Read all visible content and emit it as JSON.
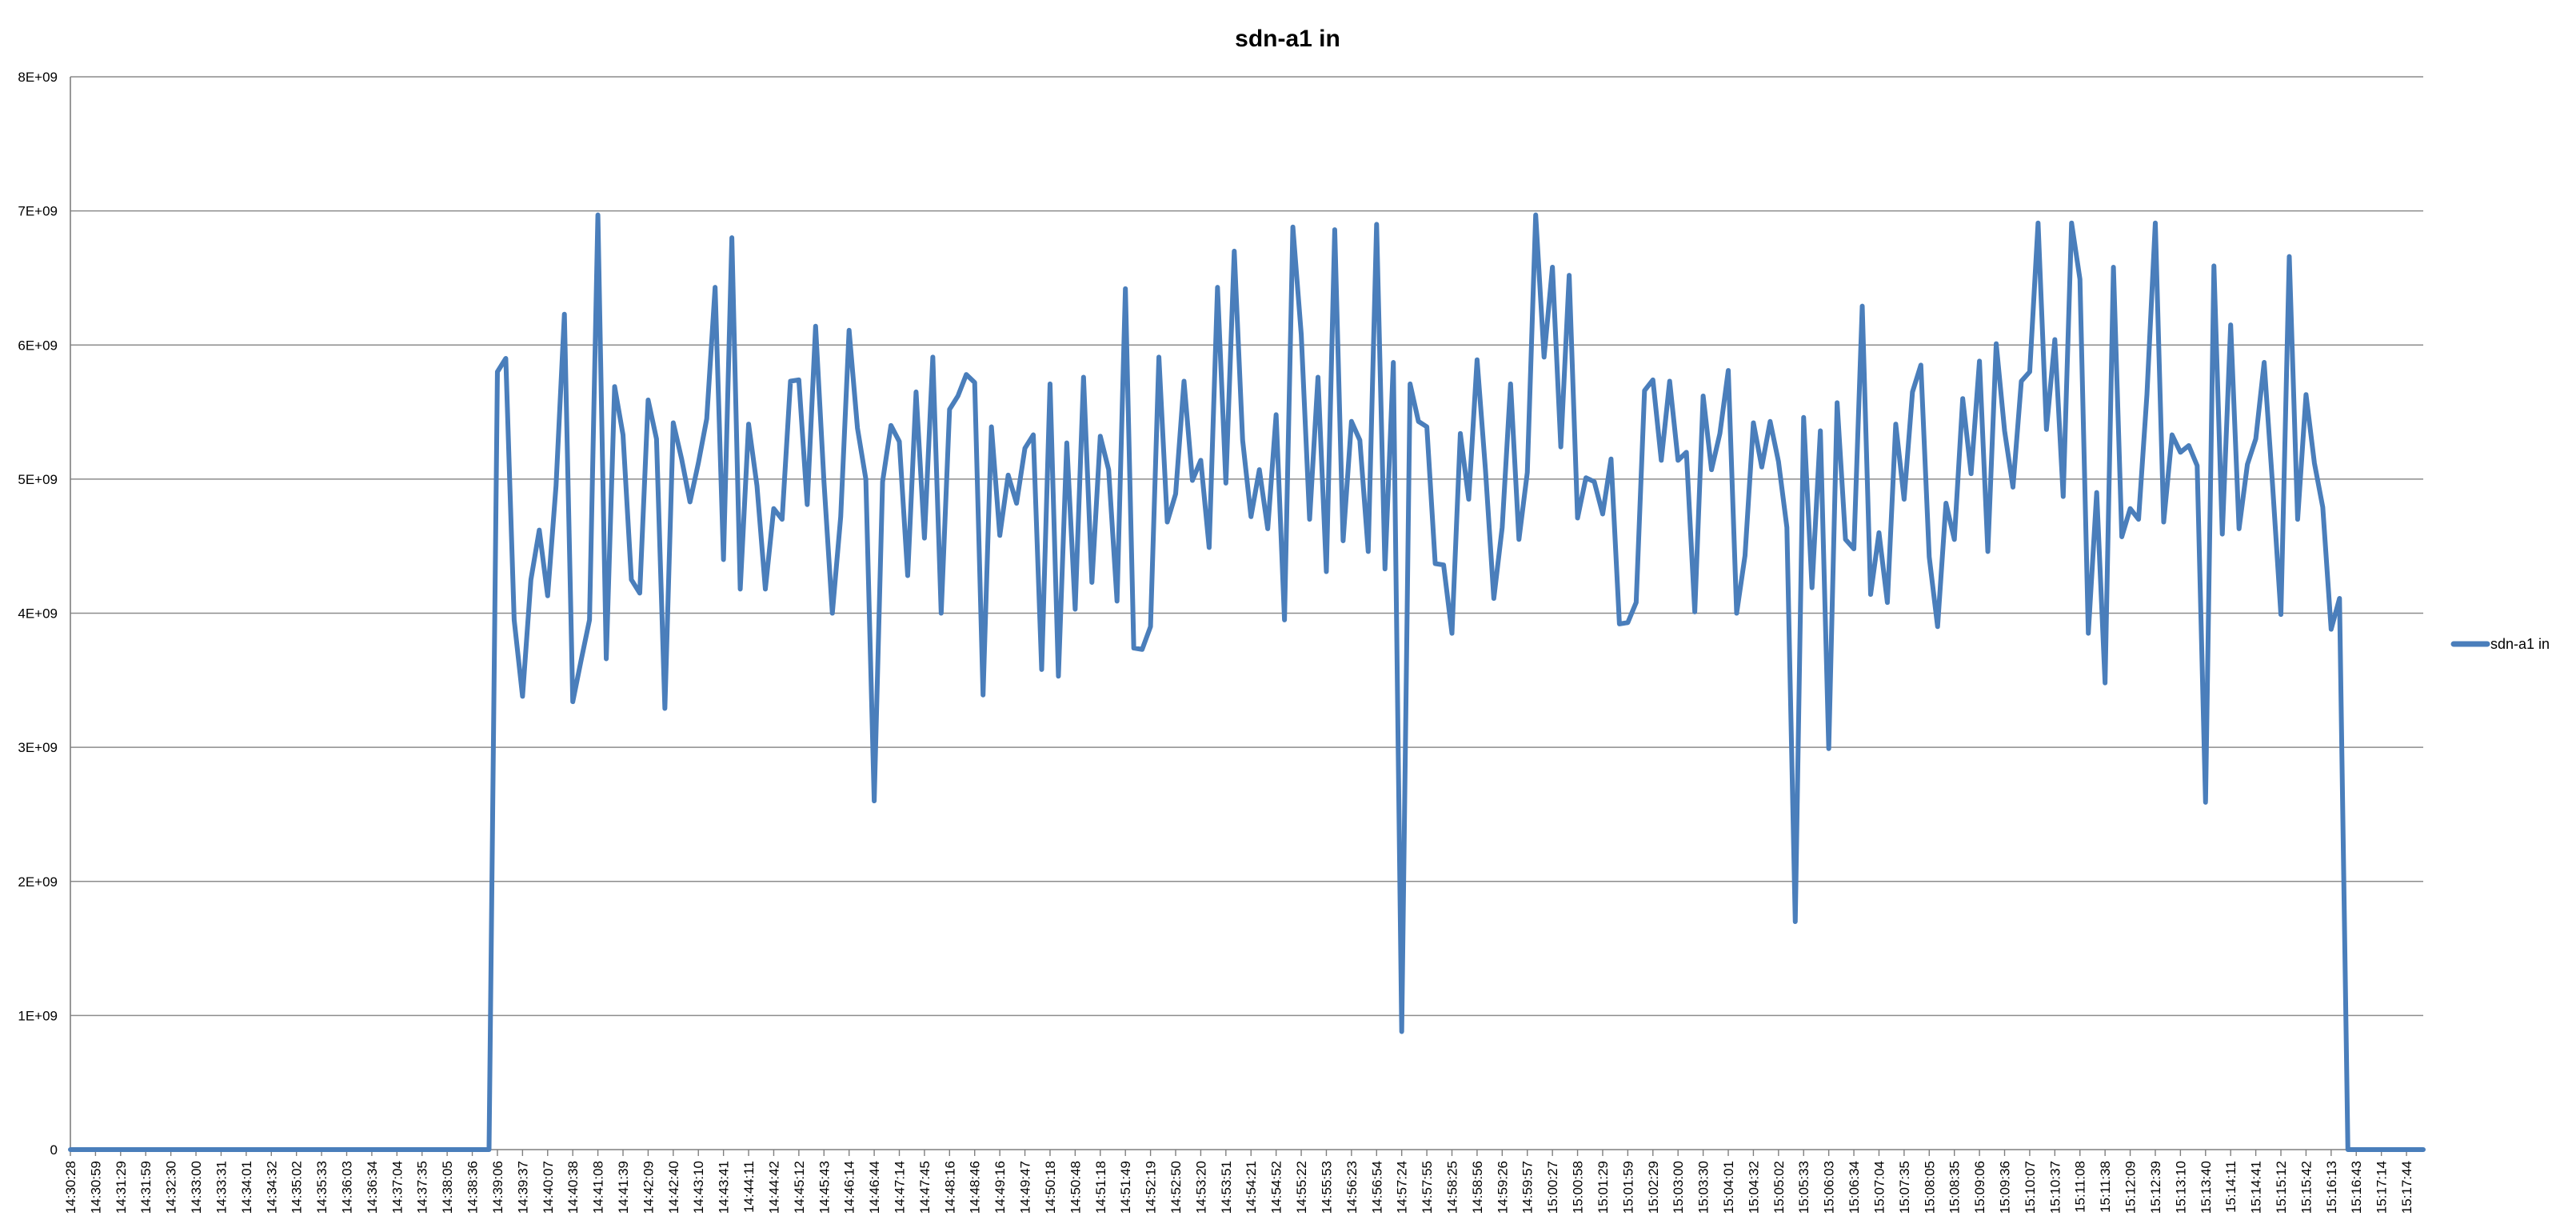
{
  "chart_data": {
    "type": "line",
    "title": "sdn-a1 in",
    "xlabel": "",
    "ylabel": "",
    "ylim": [
      0,
      8000000000
    ],
    "y_ticks": [
      "0",
      "1E+09",
      "2E+09",
      "3E+09",
      "4E+09",
      "5E+09",
      "6E+09",
      "7E+09",
      "8E+09"
    ],
    "x_tick_labels": [
      "14:30:28",
      "14:30:59",
      "14:31:29",
      "14:31:59",
      "14:32:30",
      "14:33:00",
      "14:33:31",
      "14:34:01",
      "14:34:32",
      "14:35:02",
      "14:35:33",
      "14:36:03",
      "14:36:34",
      "14:37:04",
      "14:37:35",
      "14:38:05",
      "14:38:36",
      "14:39:06",
      "14:39:37",
      "14:40:07",
      "14:40:38",
      "14:41:08",
      "14:41:39",
      "14:42:09",
      "14:42:40",
      "14:43:10",
      "14:43:41",
      "14:44:11",
      "14:44:42",
      "14:45:12",
      "14:45:43",
      "14:46:14",
      "14:46:44",
      "14:47:14",
      "14:47:45",
      "14:48:16",
      "14:48:46",
      "14:49:16",
      "14:49:47",
      "14:50:18",
      "14:50:48",
      "14:51:18",
      "14:51:49",
      "14:52:19",
      "14:52:50",
      "14:53:20",
      "14:53:51",
      "14:54:21",
      "14:54:52",
      "14:55:22",
      "14:55:53",
      "14:56:23",
      "14:56:54",
      "14:57:24",
      "14:57:55",
      "14:58:25",
      "14:58:56",
      "14:59:26",
      "14:59:57",
      "15:00:27",
      "15:00:58",
      "15:01:29",
      "15:01:59",
      "15:02:29",
      "15:03:00",
      "15:03:30",
      "15:04:01",
      "15:04:32",
      "15:05:02",
      "15:05:33",
      "15:06:03",
      "15:06:34",
      "15:07:04",
      "15:07:35",
      "15:08:05",
      "15:08:35",
      "15:09:06",
      "15:09:36",
      "15:10:07",
      "15:10:37",
      "15:11:08",
      "15:11:38",
      "15:12:09",
      "15:12:39",
      "15:13:10",
      "15:13:40",
      "15:14:11",
      "15:14:41",
      "15:15:12",
      "15:15:42",
      "15:16:13",
      "15:16:43",
      "15:17:14",
      "15:17:44"
    ],
    "grid": true,
    "legend": "right",
    "series": [
      {
        "name": "sdn-a1 in",
        "color": "#4A7EBB",
        "values": [
          0,
          0,
          0,
          0,
          0,
          0,
          0,
          0,
          0,
          0,
          0,
          0,
          0,
          0,
          0,
          0,
          0,
          0,
          0,
          0,
          0,
          0,
          0,
          0,
          0,
          0,
          0,
          0,
          0,
          0,
          0,
          0,
          0,
          0,
          0,
          0,
          0,
          0,
          0,
          0,
          0,
          0,
          0,
          0,
          0,
          0,
          0,
          0,
          0,
          0,
          0,
          5800000000,
          5900000000,
          3950000000,
          3380000000,
          4250000000,
          4620000000,
          4130000000,
          4950000000,
          6230000000,
          3340000000,
          3650000000,
          3950000000,
          6970000000,
          3660000000,
          5690000000,
          5330000000,
          4250000000,
          4150000000,
          5590000000,
          5300000000,
          3290000000,
          5420000000,
          5150000000,
          4830000000,
          5120000000,
          5450000000,
          6430000000,
          4400000000,
          6800000000,
          4180000000,
          5410000000,
          4950000000,
          4180000000,
          4780000000,
          4700000000,
          5730000000,
          5740000000,
          4810000000,
          6140000000,
          4980000000,
          4000000000,
          4720000000,
          6110000000,
          5380000000,
          5000000000,
          2600000000,
          4980000000,
          5400000000,
          5280000000,
          4280000000,
          5650000000,
          4560000000,
          5910000000,
          4000000000,
          5520000000,
          5620000000,
          5780000000,
          5720000000,
          3390000000,
          5390000000,
          4580000000,
          5030000000,
          4820000000,
          5230000000,
          5330000000,
          3580000000,
          5710000000,
          3530000000,
          5270000000,
          4030000000,
          5760000000,
          4230000000,
          5320000000,
          5070000000,
          4090000000,
          6420000000,
          3740000000,
          3730000000,
          3900000000,
          5910000000,
          4680000000,
          4890000000,
          5730000000,
          4990000000,
          5140000000,
          4490000000,
          6430000000,
          4970000000,
          6700000000,
          5290000000,
          4720000000,
          5070000000,
          4630000000,
          5480000000,
          3950000000,
          6880000000,
          6080000000,
          4700000000,
          5760000000,
          4310000000,
          6860000000,
          4540000000,
          5430000000,
          5290000000,
          4460000000,
          6900000000,
          4330000000,
          5870000000,
          880000000,
          5710000000,
          5430000000,
          5390000000,
          4370000000,
          4360000000,
          3850000000,
          5340000000,
          4850000000,
          5890000000,
          5070000000,
          4110000000,
          4640000000,
          5710000000,
          4550000000,
          5050000000,
          6970000000,
          5910000000,
          6580000000,
          5240000000,
          6520000000,
          4710000000,
          5010000000,
          4980000000,
          4740000000,
          5150000000,
          3920000000,
          3930000000,
          4080000000,
          5660000000,
          5740000000,
          5140000000,
          5730000000,
          5140000000,
          5200000000,
          4010000000,
          5620000000,
          5070000000,
          5340000000,
          5810000000,
          4000000000,
          4430000000,
          5420000000,
          5090000000,
          5430000000,
          5130000000,
          4640000000,
          1700000000,
          5460000000,
          4190000000,
          5360000000,
          2990000000,
          5570000000,
          4550000000,
          4480000000,
          6290000000,
          4140000000,
          4600000000,
          4080000000,
          5410000000,
          4850000000,
          5650000000,
          5850000000,
          4420000000,
          3900000000,
          4820000000,
          4550000000,
          5600000000,
          5040000000,
          5880000000,
          4460000000,
          6010000000,
          5360000000,
          4940000000,
          5730000000,
          5800000000,
          6910000000,
          5370000000,
          6040000000,
          4870000000,
          6910000000,
          6490000000,
          3850000000,
          4900000000,
          3480000000,
          6580000000,
          4570000000,
          4780000000,
          4700000000,
          5630000000,
          6910000000,
          4680000000,
          5330000000,
          5200000000,
          5250000000,
          5100000000,
          2590000000,
          6590000000,
          4590000000,
          6150000000,
          4630000000,
          5110000000,
          5300000000,
          5870000000,
          4960000000,
          3990000000,
          6660000000,
          4700000000,
          5630000000,
          5120000000,
          4790000000,
          3880000000,
          4110000000,
          0,
          0,
          0,
          0,
          0,
          0,
          0,
          0,
          0,
          0
        ]
      }
    ]
  }
}
